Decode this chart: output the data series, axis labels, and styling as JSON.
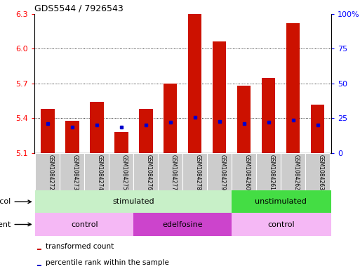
{
  "title": "GDS5544 / 7926543",
  "samples": [
    "GSM1084272",
    "GSM1084273",
    "GSM1084274",
    "GSM1084275",
    "GSM1084276",
    "GSM1084277",
    "GSM1084278",
    "GSM1084279",
    "GSM1084260",
    "GSM1084261",
    "GSM1084262",
    "GSM1084263"
  ],
  "transformed_count": [
    5.48,
    5.38,
    5.54,
    5.28,
    5.48,
    5.7,
    6.3,
    6.06,
    5.68,
    5.75,
    6.22,
    5.52
  ],
  "percentile_values": [
    5.355,
    5.325,
    5.345,
    5.325,
    5.345,
    5.365,
    5.41,
    5.375,
    5.355,
    5.365,
    5.385,
    5.34
  ],
  "y_min": 5.1,
  "y_max": 6.3,
  "y_ticks_left": [
    5.1,
    5.4,
    5.7,
    6.0,
    6.3
  ],
  "y_ticks_right": [
    0,
    25,
    50,
    75,
    100
  ],
  "bar_color": "#cc1100",
  "percentile_color": "#0000cc",
  "protocol_stim_color": "#c8f0c8",
  "protocol_unstim_color": "#44dd44",
  "agent_control_color": "#f5b8f5",
  "agent_edelfosine_color": "#cc44cc",
  "sample_box_color": "#cccccc",
  "legend_transformed": "transformed count",
  "legend_percentile": "percentile rank within the sample",
  "bar_width": 0.55
}
